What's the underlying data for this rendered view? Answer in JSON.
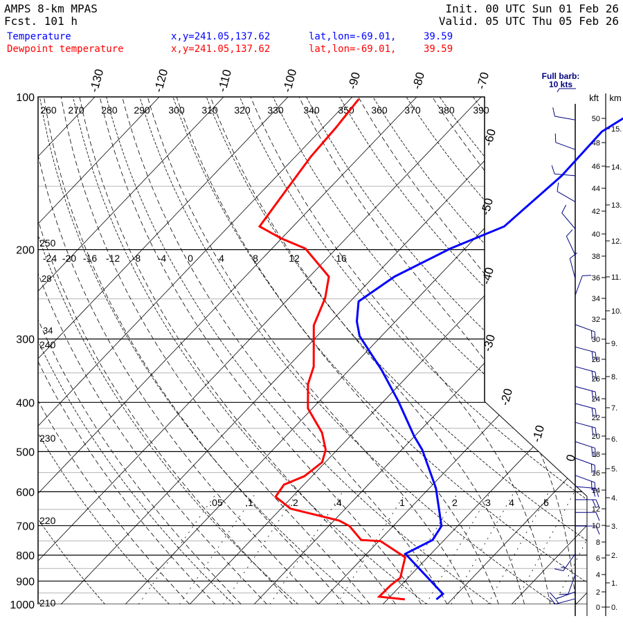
{
  "header": {
    "model": "AMPS 8-km MPAS",
    "forecast": "Fcst. 101 h",
    "init": "Init. 00 UTC Sun 01 Feb 26",
    "valid": "Valid. 05 UTC Thu 05 Feb 26"
  },
  "legend": [
    {
      "label": "Temperature",
      "xy": "x,y=241.05,137.62",
      "latlon": "lat,lon=-69.01,",
      "lon": "39.59",
      "color": "#0000ff"
    },
    {
      "label": "Dewpoint temperature",
      "xy": "x,y=241.05,137.62",
      "latlon": "lat,lon=-69.01,",
      "lon": "39.59",
      "color": "#ff0000"
    }
  ],
  "chart_data": {
    "type": "line",
    "subtype": "skew-T log-p",
    "ylabel": "Pressure (hPa)",
    "ylim": [
      1000,
      100
    ],
    "pressure_ticks": [
      "100",
      "200",
      "300",
      "400",
      "500",
      "600",
      "700",
      "800",
      "900",
      "1000"
    ],
    "isotherm_labels_top": [
      "-130",
      "-120",
      "-110",
      "-100",
      "-90",
      "-80",
      "-70"
    ],
    "isotherm_labels_right": [
      "-60",
      "-50",
      "-40",
      "-30",
      "-20",
      "-10",
      "0"
    ],
    "theta_labels": [
      "260",
      "270",
      "280",
      "290",
      "300",
      "310",
      "320",
      "330",
      "340",
      "350",
      "360",
      "370",
      "380",
      "390"
    ],
    "moist_labels": [
      "-24",
      "-20",
      "-16",
      "-12",
      "-8",
      "-4",
      "0",
      "4",
      "8",
      "12",
      "16"
    ],
    "kelvin_labels": [
      "250",
      "240",
      "230",
      "220",
      "210"
    ],
    "left_extra_labels": [
      "28",
      "34"
    ],
    "mixing_ratio_labels": [
      ".05",
      ".1",
      ".2",
      ".4",
      "1",
      "2",
      "3",
      "4",
      "6"
    ],
    "mixing_ratio_values": [
      0.05,
      0.1,
      0.2,
      0.4,
      1,
      2,
      3,
      4,
      6,
      8,
      12
    ],
    "series": [
      {
        "name": "Temperature",
        "color": "#0000ff",
        "units": "degC",
        "p": [
          978,
          954,
          795,
          747,
          701,
          590,
          496,
          466,
          398,
          345,
          296,
          277,
          253,
          226,
          199,
          180,
          163,
          143,
          117,
          110
        ],
        "t": [
          -2.4,
          -2.2,
          -14.0,
          -11.8,
          -12.5,
          -19.0,
          -26.8,
          -30.1,
          -37.7,
          -45.0,
          -53.4,
          -56.0,
          -58.7,
          -56.8,
          -52.3,
          -47.2,
          -46.6,
          -45.8,
          -46.1,
          -44.7
        ]
      },
      {
        "name": "Dewpoint temperature",
        "color": "#ff0000",
        "units": "degC",
        "p": [
          978,
          966,
          916,
          887,
          808,
          751,
          747,
          701,
          684,
          648,
          614,
          581,
          559,
          525,
          496,
          459,
          411,
          368,
          340,
          282,
          249,
          226,
          199,
          190,
          180,
          156,
          131,
          115,
          101
        ],
        "t": [
          -7.3,
          -11.7,
          -11.6,
          -11.2,
          -13.5,
          -19.7,
          -22.9,
          -26.8,
          -29.2,
          -38.5,
          -42.6,
          -43.1,
          -41.2,
          -40.5,
          -41.8,
          -44.9,
          -50.7,
          -54.3,
          -56.0,
          -62.1,
          -64.4,
          -67.0,
          -74.8,
          -80.1,
          -85.2,
          -86.3,
          -87.6,
          -88.0,
          -88.7
        ]
      }
    ],
    "wind_barbs": {
      "legend_line1": "Full barb:",
      "legend_line2": "10 kts",
      "color": "#00007f",
      "units": "kt",
      "p": [
        111,
        127,
        143,
        161,
        182,
        205,
        228,
        246,
        281,
        311,
        340,
        372,
        402,
        438,
        478,
        515,
        557,
        586,
        622,
        659,
        701,
        795,
        874,
        945,
        975
      ],
      "dir": [
        280,
        290,
        275,
        300,
        320,
        335,
        345,
        20,
        110,
        105,
        105,
        105,
        105,
        105,
        108,
        110,
        110,
        95,
        90,
        90,
        90,
        215,
        200,
        250,
        255
      ],
      "spd": [
        10,
        10,
        10,
        10,
        10,
        10,
        10,
        10,
        20,
        20,
        20,
        20,
        20,
        20,
        20,
        20,
        20,
        20,
        20,
        10,
        10,
        15,
        10,
        10,
        15
      ]
    },
    "height_axis": {
      "kft_label": "kft",
      "km_label": "km",
      "kft": [
        "0",
        "2",
        "4",
        "6",
        "8",
        "10",
        "12",
        "14",
        "16",
        "18",
        "20",
        "22",
        "24",
        "26",
        "28",
        "30",
        "32",
        "34",
        "36",
        "38",
        "40",
        "42",
        "44",
        "46",
        "48",
        "50"
      ],
      "km": [
        "0.",
        "1.",
        "2.",
        "3.",
        "4.",
        "5.",
        "6.",
        "7.",
        "8.",
        "9.",
        "10.",
        "11.",
        "12.",
        "13.",
        "14.",
        "15."
      ]
    }
  }
}
